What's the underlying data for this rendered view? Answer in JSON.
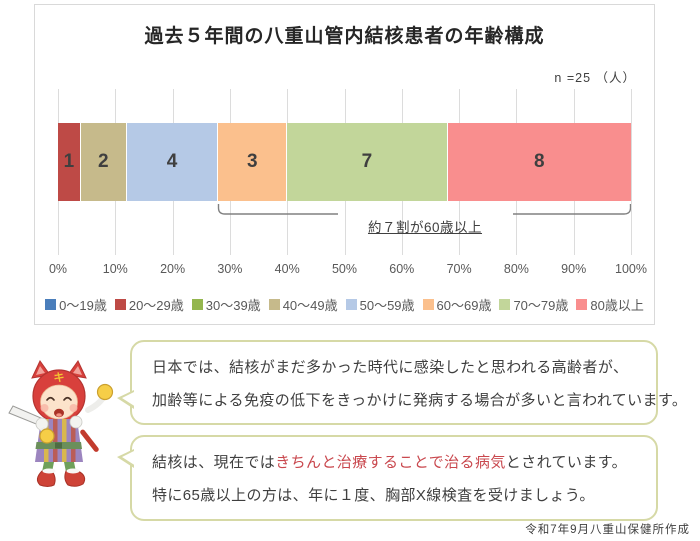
{
  "page": {
    "footer": "令和7年9月八重山保健所作成"
  },
  "chart_data": {
    "type": "bar",
    "stacked": true,
    "orientation": "horizontal",
    "title": "過去５年間の八重山管内結核患者の年齢構成",
    "n": 25,
    "n_label": "n =25 （人）",
    "categories": [
      "0～19歳",
      "20～29歳",
      "30～39歳",
      "40～49歳",
      "50～59歳",
      "60～69歳",
      "70～79歳",
      "80歳以上"
    ],
    "values": [
      0,
      1,
      0,
      2,
      4,
      3,
      7,
      8
    ],
    "colors": [
      "#4a7ebb",
      "#be4a46",
      "#94b64e",
      "#c6ba8b",
      "#b5c9e6",
      "#fbc08d",
      "#c2d69a",
      "#f98e8e"
    ],
    "x_ticks": [
      "0%",
      "10%",
      "20%",
      "30%",
      "40%",
      "50%",
      "60%",
      "70%",
      "80%",
      "90%",
      "100%"
    ],
    "xlim": [
      0,
      100
    ],
    "grid": true,
    "legend_position": "bottom",
    "annotation": "約７割が60歳以上",
    "annotation_range_percent": [
      28,
      100
    ]
  },
  "bubbles": [
    {
      "line1": "日本では、結核がまだ多かった時代に感染したと思われる高齢者が、",
      "line2": "加齢等による免疫の低下をきっかけに発病する場合が多いと言われています。"
    },
    {
      "line1_prefix": "結核は、現在では",
      "line1_highlight": "きちんと治療することで治る病気",
      "line1_suffix": "とされています。",
      "line2": "特に65歳以上の方は、年に１度、胸部X線検査を受けましょう。"
    }
  ]
}
